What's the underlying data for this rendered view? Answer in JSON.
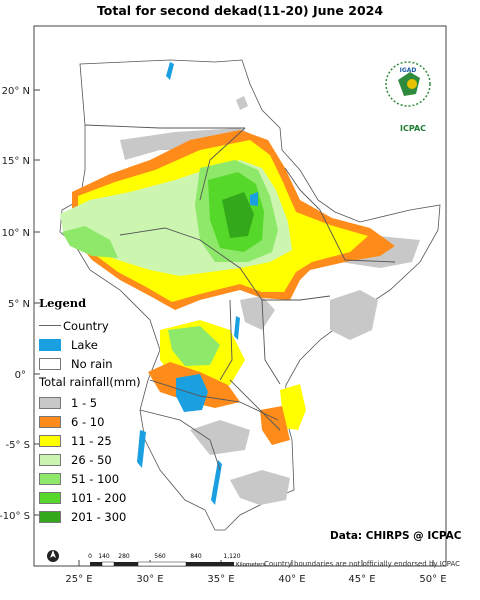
{
  "title": "Total  for second dekad(11-20) June 2024",
  "latitude_labels": [
    "20° N",
    "15° N",
    "10° N",
    "5° N",
    "0°",
    "-5° S",
    "-10° S"
  ],
  "longitude_labels": [
    "25° E",
    "30° E",
    "35° E",
    "40° E",
    "45° E",
    "50° E"
  ],
  "legend": {
    "title": "Legend",
    "country": "Country",
    "lake": "Lake",
    "no_rain": "No rain",
    "rainfall_title": "Total rainfall(mm)",
    "classes": [
      {
        "label": "1 - 5",
        "color": "#c8c8c8"
      },
      {
        "label": "6 - 10",
        "color": "#ff8c1a"
      },
      {
        "label": "11 - 25",
        "color": "#ffff00"
      },
      {
        "label": "26 - 50",
        "color": "#ccf5b0"
      },
      {
        "label": "51 - 100",
        "color": "#8ee86a"
      },
      {
        "label": "101 - 200",
        "color": "#55d82a"
      },
      {
        "label": "201 - 300",
        "color": "#33a81a"
      }
    ],
    "lake_color": "#1aa0e0"
  },
  "scale_bar": {
    "ticks": [
      "0",
      "140",
      "280",
      "560",
      "840",
      "1,120"
    ],
    "unit": "Kilometers"
  },
  "logo": {
    "top": "IGAD",
    "bottom": "ICPAC"
  },
  "credit": "Data: CHIRPS @ ICPAC",
  "disclaimer": "Country boundaries are not officially endorsed by ICPAC"
}
